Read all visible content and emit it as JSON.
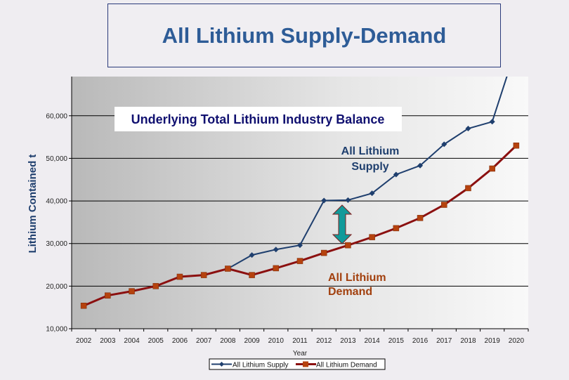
{
  "title": "All Lithium Supply-Demand",
  "chart_data": {
    "type": "line",
    "xlabel": "Year",
    "ylabel": "Lithium Contained t",
    "ylim": [
      10000,
      69200
    ],
    "yticks": [
      "10,000",
      "20,000",
      "30,000",
      "40,000",
      "50,000",
      "60,000"
    ],
    "ytick_values": [
      10000,
      20000,
      30000,
      40000,
      50000,
      60000
    ],
    "grid": true,
    "legend_position": "bottom",
    "categories": [
      "2002",
      "2003",
      "2004",
      "2005",
      "2006",
      "2007",
      "2008",
      "2009",
      "2010",
      "2011",
      "2012",
      "2013",
      "2014",
      "2015",
      "2016",
      "2017",
      "2018",
      "2019",
      "2020"
    ],
    "series": [
      {
        "name": "All Lithium Supply",
        "color": "#1f3f6e",
        "marker": "diamond",
        "values": [
          15400,
          17800,
          18800,
          20000,
          22200,
          22600,
          24100,
          27300,
          28600,
          29600,
          40100,
          40200,
          41800,
          46200,
          48300,
          53300,
          57000,
          58600,
          76000
        ]
      },
      {
        "name": "All Lithium Demand",
        "color": "#8b1010",
        "marker_color": "#b5420e",
        "marker": "square",
        "values": [
          15400,
          17800,
          18800,
          20000,
          22200,
          22600,
          24100,
          22600,
          24200,
          25900,
          27800,
          29600,
          31500,
          33600,
          36000,
          39100,
          43000,
          47600,
          53000
        ]
      }
    ],
    "annotations": {
      "balance_box": "Underlying Total Lithium Industry Balance",
      "supply_label": [
        "All Lithium",
        "Supply"
      ],
      "demand_label": [
        "All Lithium",
        "Demand"
      ],
      "gap_arrow_color": "#119a9a"
    }
  }
}
